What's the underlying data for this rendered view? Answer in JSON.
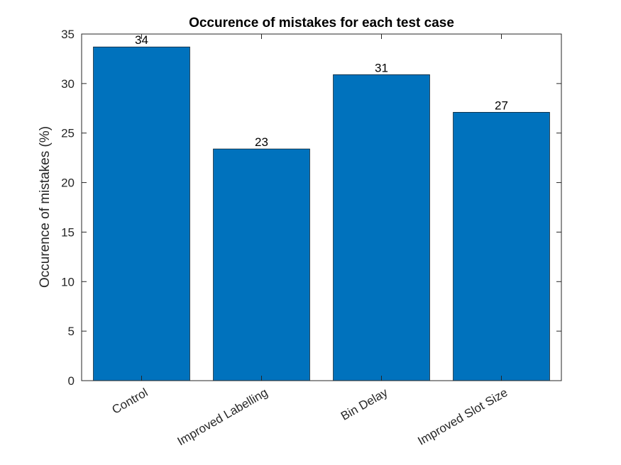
{
  "chart_data": {
    "type": "bar",
    "title": "Occurence of mistakes for each test case",
    "xlabel": "",
    "ylabel": "Occurence of mistakes (%)",
    "categories": [
      "Control",
      "Improved Labelling",
      "Bin Delay",
      "Improved Slot Size"
    ],
    "values": [
      33.7,
      23.4,
      30.9,
      27.1
    ],
    "data_labels": [
      "34",
      "23",
      "31",
      "27"
    ],
    "ylim": [
      0,
      35
    ],
    "yticks": [
      0,
      5,
      10,
      15,
      20,
      25,
      30,
      35
    ],
    "grid": false,
    "legend": "none",
    "bar_color": "#0072BD",
    "axis_color": "#262626"
  }
}
